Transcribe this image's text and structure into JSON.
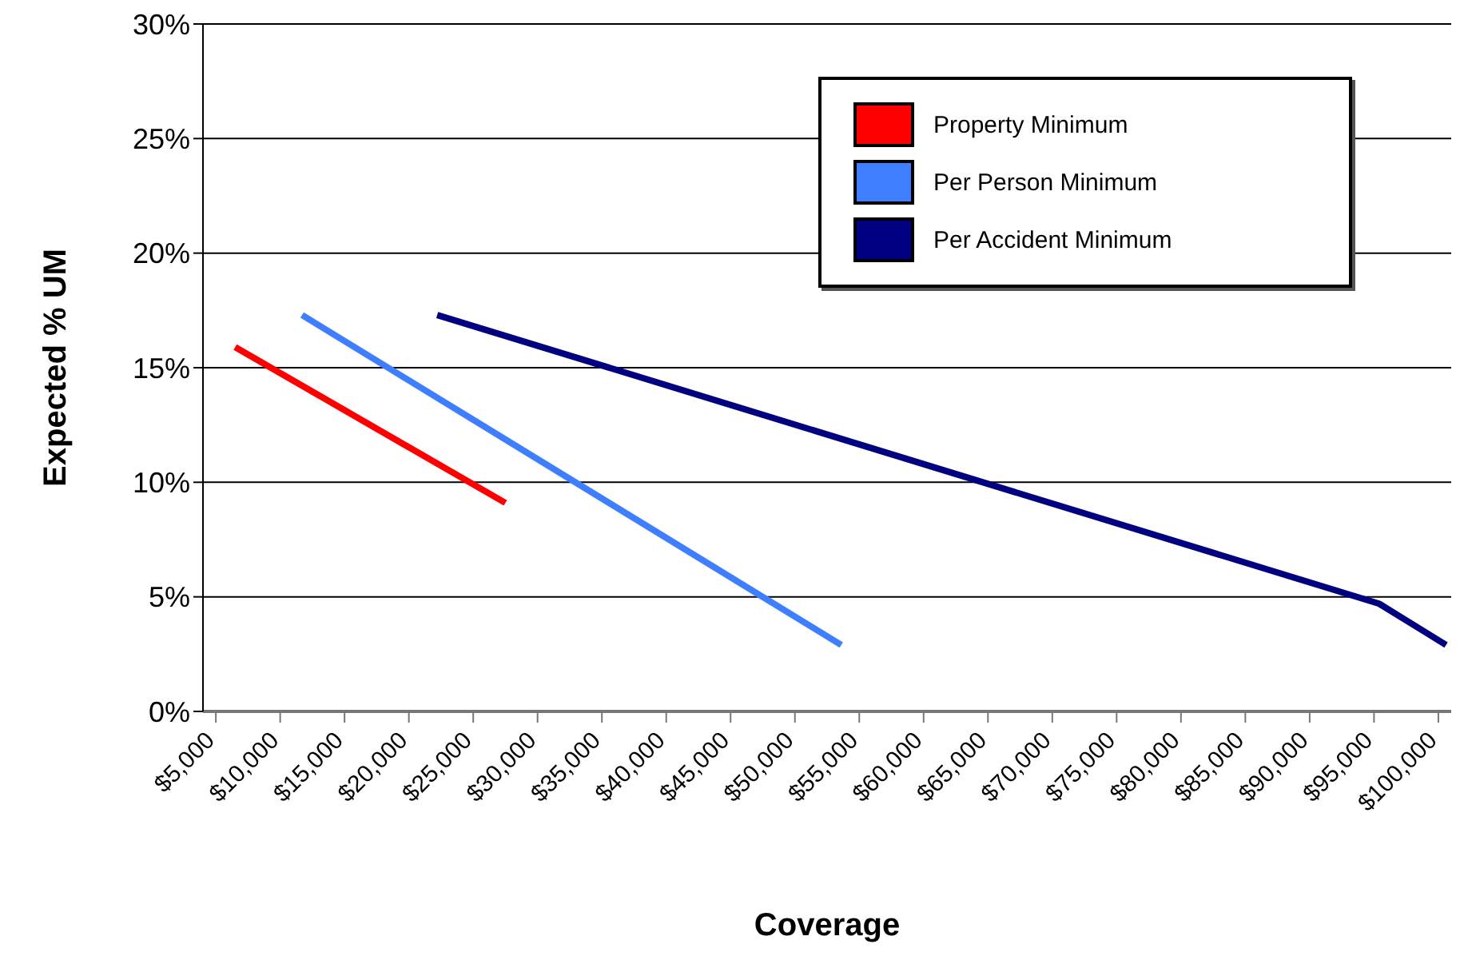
{
  "chart_data": {
    "type": "line",
    "xlabel": "Coverage",
    "ylabel": "Expected % UM",
    "xlim": [
      4000,
      101000
    ],
    "xticks": [
      {
        "value": 5000,
        "label": "$5,000"
      },
      {
        "value": 10000,
        "label": "$10,000"
      },
      {
        "value": 15000,
        "label": "$15,000"
      },
      {
        "value": 20000,
        "label": "$20,000"
      },
      {
        "value": 25000,
        "label": "$25,000"
      },
      {
        "value": 30000,
        "label": "$30,000"
      },
      {
        "value": 35000,
        "label": "$35,000"
      },
      {
        "value": 40000,
        "label": "$40,000"
      },
      {
        "value": 45000,
        "label": "$45,000"
      },
      {
        "value": 50000,
        "label": "$50,000"
      },
      {
        "value": 55000,
        "label": "$55,000"
      },
      {
        "value": 60000,
        "label": "$60,000"
      },
      {
        "value": 65000,
        "label": "$65,000"
      },
      {
        "value": 70000,
        "label": "$70,000"
      },
      {
        "value": 75000,
        "label": "$75,000"
      },
      {
        "value": 80000,
        "label": "$80,000"
      },
      {
        "value": 85000,
        "label": "$85,000"
      },
      {
        "value": 90000,
        "label": "$90,000"
      },
      {
        "value": 95000,
        "label": "$95,000"
      },
      {
        "value": 100000,
        "label": "$100,000"
      }
    ],
    "ylim": [
      0,
      30
    ],
    "yticks": [
      {
        "value": 0,
        "label": "0%"
      },
      {
        "value": 5,
        "label": "5%"
      },
      {
        "value": 10,
        "label": "10%"
      },
      {
        "value": 15,
        "label": "15%"
      },
      {
        "value": 20,
        "label": "20%"
      },
      {
        "value": 25,
        "label": "25%"
      },
      {
        "value": 30,
        "label": "30%"
      }
    ],
    "grid": "y",
    "legend": "top right",
    "marker": "none",
    "line_style": "solid",
    "series": [
      {
        "name": "Property Minimum",
        "color": "#ff0000",
        "x": [
          6500,
          27500
        ],
        "values": [
          15.9,
          9.1
        ]
      },
      {
        "name": "Per Person Minimum",
        "color": "#3f7fff",
        "x": [
          11700,
          53600
        ],
        "values": [
          17.3,
          2.9
        ]
      },
      {
        "name": "Per Accident Minimum",
        "color": "#000080",
        "x": [
          22200,
          95400,
          100600
        ],
        "values": [
          17.3,
          4.7,
          2.9
        ]
      }
    ]
  }
}
